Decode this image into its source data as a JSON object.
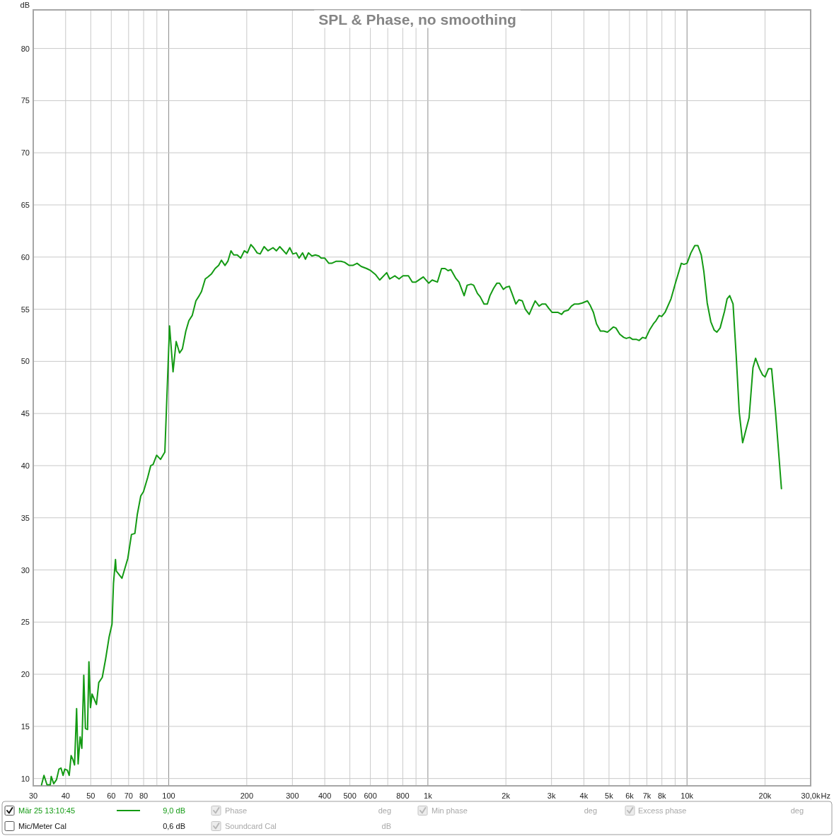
{
  "chart_data": {
    "type": "line",
    "title": "SPL & Phase, no smoothing",
    "ylabel": "dB",
    "xlabel": "Hz",
    "log": "x",
    "grid": true,
    "legend": "bottom",
    "x": [
      32.3,
      33.0,
      33.9,
      34.9,
      35.2,
      36.0,
      36.9,
      37.7,
      38.4,
      39.1,
      39.7,
      40.6,
      41.3,
      42.0,
      42.7,
      43.3,
      44.1,
      44.7,
      45.5,
      46.2,
      47.0,
      47.7,
      48.6,
      49.2,
      49.9,
      50.6,
      52.6,
      53.7,
      55.4,
      57.1,
      58.9,
      60.4,
      61.2,
      62.3,
      62.7,
      66.0,
      69.5,
      71.8,
      74.0,
      75.6,
      78.0,
      79.9,
      83.0,
      85.2,
      87.0,
      89.8,
      93.0,
      95.5,
      96.6,
      100.7,
      103.9,
      106.8,
      110.1,
      112.9,
      116.4,
      119.6,
      123.2,
      127.3,
      131.1,
      133.8,
      138.3,
      141.8,
      146.3,
      151.0,
      155.8,
      159.7,
      164.8,
      169.1,
      173.8,
      178.1,
      183.8,
      189.5,
      195.7,
      201.1,
      207.5,
      212.6,
      219.4,
      225.4,
      233.4,
      241.5,
      252.6,
      260.4,
      268.1,
      284.3,
      293.1,
      301.2,
      310.6,
      318.4,
      328.5,
      336.9,
      345.9,
      356.8,
      368.0,
      379.6,
      387.5,
      399.8,
      414.8,
      425.3,
      443.2,
      462.1,
      476.8,
      497.1,
      513.1,
      533.0,
      552.7,
      580.5,
      601.8,
      629,
      651.7,
      693.6,
      712.4,
      745.5,
      773.8,
      801.7,
      841.1,
      871,
      898.4,
      960.3,
      1007,
      1039,
      1088,
      1129,
      1165,
      1196,
      1227,
      1279,
      1318,
      1380,
      1418,
      1468,
      1502,
      1554,
      1591,
      1647,
      1696,
      1736,
      1793,
      1847,
      1890,
      1956,
      2001,
      2062,
      2120,
      2185,
      2245,
      2314,
      2378,
      2461,
      2530,
      2595,
      2686,
      2761,
      2845,
      2925,
      3013,
      3170,
      3281,
      3357,
      3475,
      3581,
      3681,
      3809,
      3943,
      4128,
      4224,
      4353,
      4474,
      4632,
      4773,
      4929,
      5043,
      5196,
      5316,
      5503,
      5696,
      5829,
      6005,
      6173,
      6389,
      6538,
      6736,
      6924,
      7167,
      7419,
      7591,
      7803,
      7985,
      8228,
      8675,
      9019,
      9507,
      9727,
      10000,
      10351,
      10715,
      11015,
      11350,
      11614,
      11965,
      12356,
      12731,
      13027,
      13421,
      13955,
      14281,
      14613,
      15054,
      15476,
      15909,
      16392,
      17361,
      17970,
      18389,
      19032,
      19565,
      20020,
      20628,
      21203,
      21948,
      23140
    ],
    "series": [
      {
        "name": "Mär 25 13:10:45",
        "color": "#139a13",
        "values": [
          9.4,
          10.3,
          9.4,
          9.4,
          10.2,
          9.5,
          9.9,
          10.9,
          11.0,
          10.3,
          10.9,
          10.8,
          10.3,
          12.2,
          11.8,
          11.3,
          16.7,
          11.4,
          14.0,
          12.9,
          19.9,
          14.8,
          14.7,
          21.2,
          16.8,
          18.1,
          17.1,
          19.2,
          19.7,
          21.5,
          23.6,
          24.8,
          28.7,
          31.0,
          29.9,
          29.2,
          31.1,
          33.4,
          33.5,
          35.3,
          37.1,
          37.5,
          38.9,
          40.0,
          40.1,
          41.0,
          40.6,
          41.1,
          41.3,
          53.4,
          49.0,
          51.9,
          50.8,
          51.2,
          52.9,
          53.9,
          54.4,
          55.8,
          56.3,
          56.7,
          57.9,
          58.1,
          58.4,
          58.9,
          59.2,
          59.7,
          59.2,
          59.6,
          60.6,
          60.2,
          60.2,
          59.9,
          60.6,
          60.4,
          61.2,
          60.9,
          60.4,
          60.3,
          61.0,
          60.6,
          60.9,
          60.6,
          61.0,
          60.3,
          60.9,
          60.3,
          60.4,
          59.9,
          60.4,
          59.8,
          60.4,
          60.1,
          60.2,
          60.1,
          59.9,
          59.9,
          59.4,
          59.4,
          59.6,
          59.6,
          59.5,
          59.2,
          59.2,
          59.4,
          59.1,
          58.9,
          58.7,
          58.3,
          57.8,
          58.5,
          57.9,
          58.2,
          57.9,
          58.2,
          58.2,
          57.6,
          57.6,
          58.1,
          57.5,
          57.8,
          57.6,
          58.9,
          58.9,
          58.7,
          58.8,
          58.0,
          57.6,
          56.3,
          57.3,
          57.4,
          57.3,
          56.5,
          56.2,
          55.5,
          55.5,
          56.3,
          57.0,
          57.5,
          57.5,
          56.9,
          57.1,
          57.2,
          56.4,
          55.5,
          55.9,
          55.8,
          55.0,
          54.5,
          55.2,
          55.8,
          55.3,
          55.5,
          55.5,
          55.1,
          54.7,
          54.7,
          54.5,
          54.8,
          54.9,
          55.3,
          55.5,
          55.5,
          55.6,
          55.8,
          55.4,
          54.7,
          53.6,
          52.9,
          52.9,
          52.8,
          53.0,
          53.3,
          53.2,
          52.6,
          52.3,
          52.2,
          52.3,
          52.1,
          52.1,
          52.0,
          52.3,
          52.2,
          53.0,
          53.6,
          53.9,
          54.4,
          54.3,
          54.7,
          56.0,
          57.5,
          59.4,
          59.3,
          59.4,
          60.4,
          61.1,
          61.1,
          60.2,
          58.6,
          55.6,
          53.8,
          53.0,
          52.8,
          53.2,
          54.8,
          56.0,
          56.3,
          55.5,
          50.6,
          45.1,
          42.2,
          44.6,
          49.4,
          50.3,
          49.3,
          48.7,
          48.5,
          49.3,
          49.3,
          45.2,
          37.8
        ]
      }
    ],
    "xlim": [
      30,
      30000
    ],
    "ylim": [
      9.3,
      83.7
    ],
    "xticks": [
      30,
      40,
      50,
      60,
      70,
      80,
      {
        "value": 90,
        "label": null
      },
      100,
      200,
      300,
      400,
      500,
      600,
      {
        "value": 700,
        "label": null
      },
      800,
      {
        "value": 900,
        "label": null
      },
      {
        "value": 1000,
        "label": "1k"
      },
      {
        "value": 2000,
        "label": "2k"
      },
      {
        "value": 3000,
        "label": "3k"
      },
      {
        "value": 4000,
        "label": "4k"
      },
      {
        "value": 5000,
        "label": "5k"
      },
      {
        "value": 6000,
        "label": "6k"
      },
      {
        "value": 7000,
        "label": "7k"
      },
      {
        "value": 8000,
        "label": "8k"
      },
      {
        "value": 9000,
        "label": null
      },
      {
        "value": 10000,
        "label": "10k"
      },
      {
        "value": 20000,
        "label": "20k"
      },
      {
        "value": 30000,
        "label": "30,0k"
      }
    ],
    "yticks": [
      10,
      15,
      20,
      25,
      30,
      35,
      40,
      45,
      50,
      55,
      60,
      65,
      70,
      75,
      80
    ],
    "annotations": [
      "9,0 dB",
      "Phase",
      "deg",
      "Min phase",
      "deg",
      "Excess phase",
      "deg",
      "Mic/Meter Cal",
      "0,6 dB",
      "Soundcard Cal",
      "dB"
    ]
  }
}
